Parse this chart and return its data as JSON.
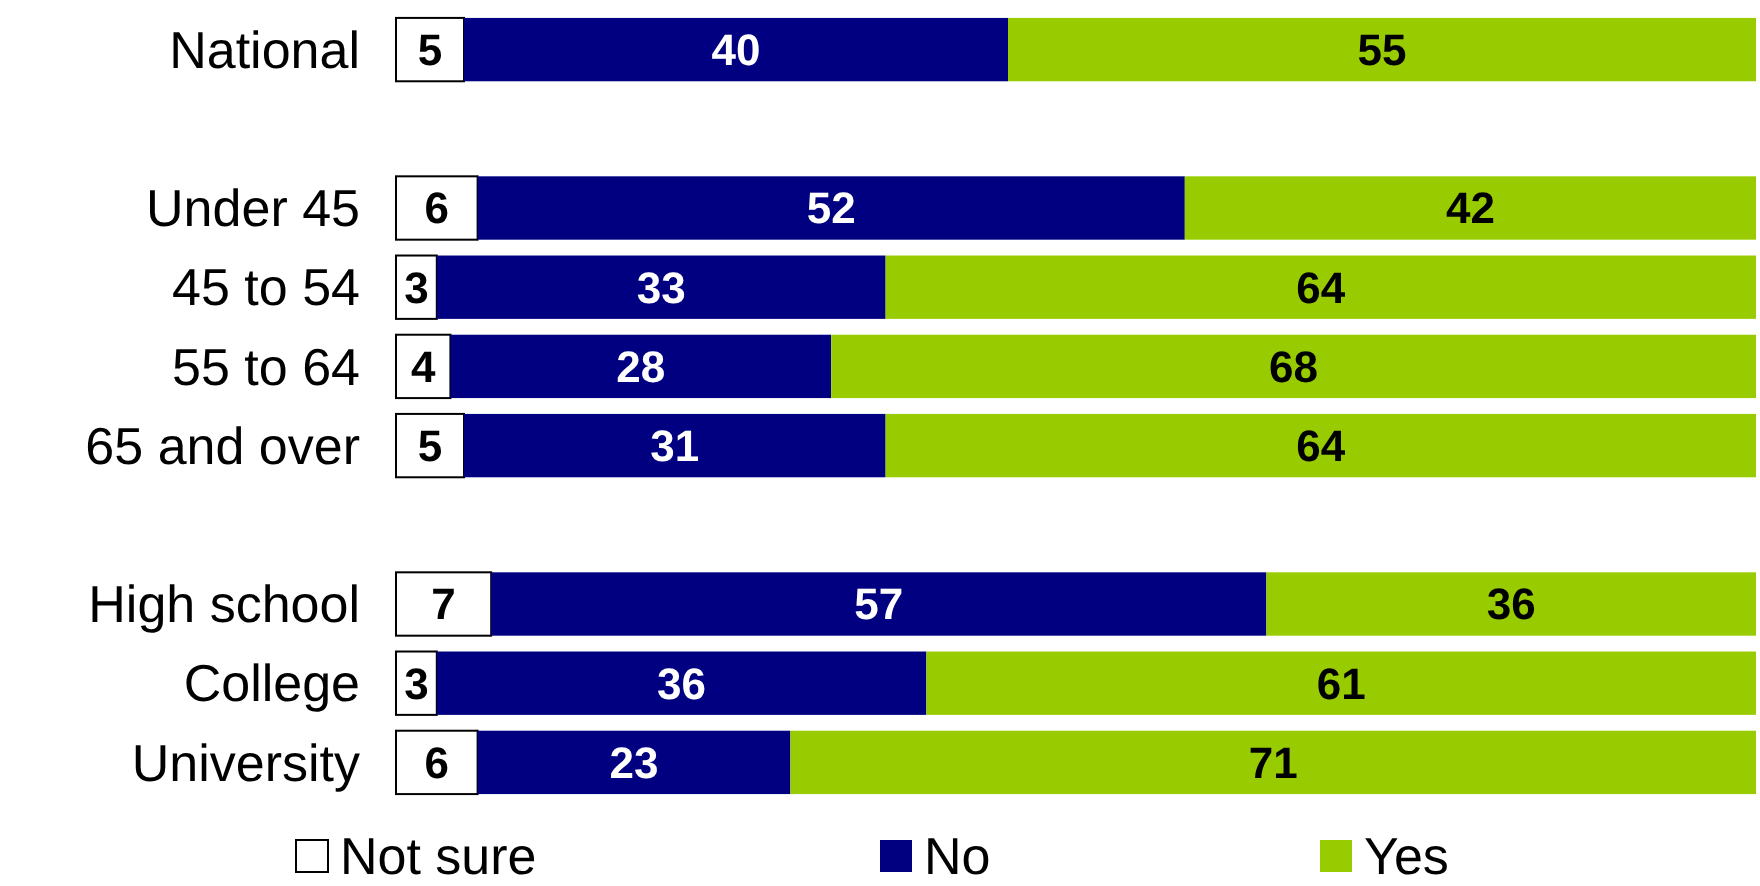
{
  "chart_data": {
    "type": "bar",
    "orientation": "horizontal",
    "stacked": true,
    "data_labels": true,
    "legend": "bottom",
    "categories": [
      "National",
      null,
      "Under 45",
      "45 to 54",
      "55 to 64",
      "65 and over",
      null,
      "High school",
      "College",
      "University"
    ],
    "series": [
      {
        "name": "Not sure",
        "color": "#ffffff",
        "values": [
          5,
          null,
          6,
          3,
          4,
          5,
          null,
          7,
          3,
          6
        ]
      },
      {
        "name": "No",
        "color": "#000080",
        "values": [
          40,
          null,
          52,
          33,
          28,
          31,
          null,
          57,
          36,
          23
        ]
      },
      {
        "name": "Yes",
        "color": "#99cc00",
        "values": [
          55,
          null,
          42,
          64,
          68,
          64,
          null,
          36,
          61,
          71
        ]
      }
    ]
  }
}
